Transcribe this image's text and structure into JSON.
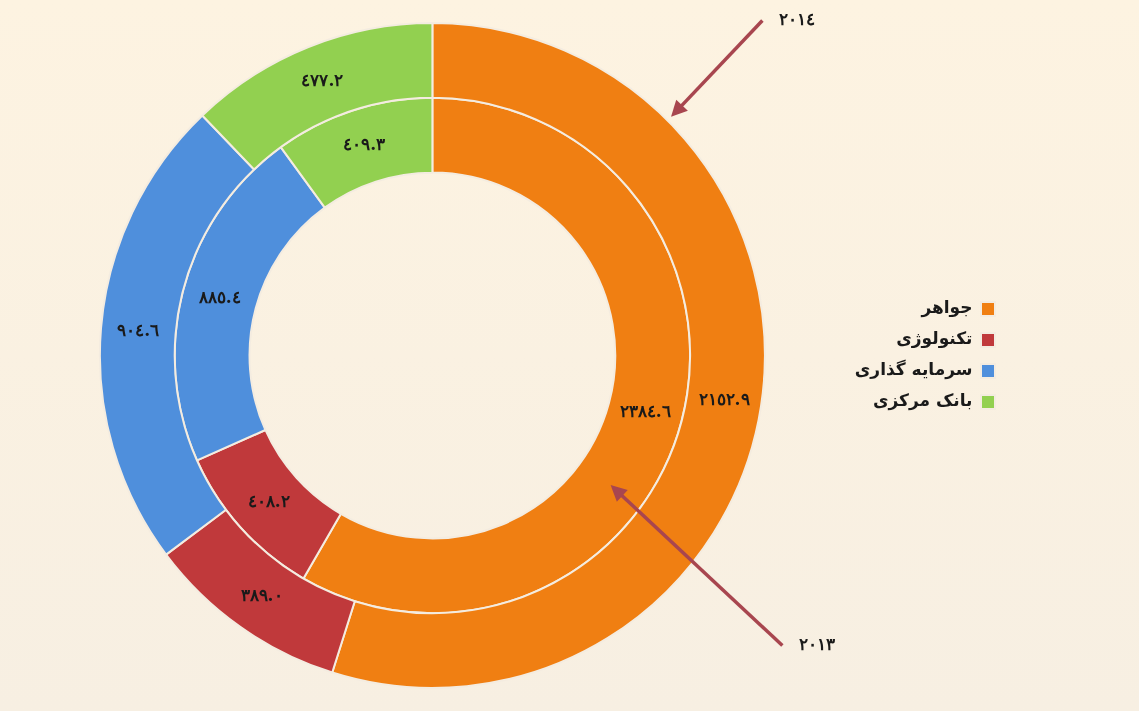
{
  "chart_data": {
    "type": "donut",
    "categories": [
      "جواهر",
      "تکنولوژی",
      "سرمایه گذاری",
      "بانک مرکزی"
    ],
    "colors": [
      "#f07f12",
      "#c0393b",
      "#4f8fdc",
      "#92d050"
    ],
    "series": [
      {
        "name": "٢٠١٤",
        "values": [
          2152.9,
          389.0,
          904.6,
          477.2
        ],
        "value_labels": [
          "٢١٥٢.٩",
          "٣٨٩.٠",
          "٩٠٤.٦",
          "٤٧٧.٢"
        ]
      },
      {
        "name": "٢٠١٣",
        "values": [
          2384.6,
          408.2,
          885.4,
          409.3
        ],
        "value_labels": [
          "٢٣٨٤.٦",
          "٤٠٨.٢",
          "٨٨٥.٤",
          "٤٠٩.٣"
        ]
      }
    ],
    "legend": "right"
  }
}
